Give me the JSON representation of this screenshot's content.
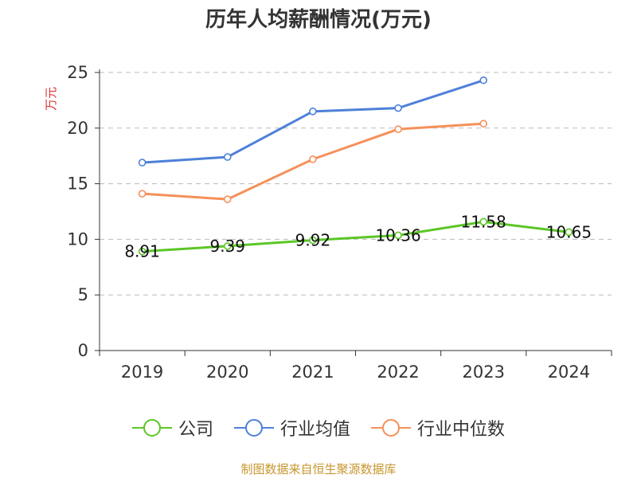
{
  "chart_data": {
    "type": "line",
    "title": "历年人均薪酬情况(万元)",
    "ylabel": "万元",
    "xlabel": "",
    "categories": [
      "2019",
      "2020",
      "2021",
      "2022",
      "2023",
      "2024"
    ],
    "ylim": [
      0,
      25
    ],
    "yticks": [
      0,
      5,
      10,
      15,
      20,
      25
    ],
    "grid": "horizontal-dashed",
    "legend_position": "bottom",
    "series": [
      {
        "name": "公司",
        "color": "#5cc626",
        "values": [
          8.91,
          9.39,
          9.92,
          10.36,
          11.58,
          10.65
        ],
        "labels": [
          "8.91",
          "9.39",
          "9.92",
          "10.36",
          "11.58",
          "10.65"
        ]
      },
      {
        "name": "行业均值",
        "color": "#4e80d9",
        "values": [
          16.9,
          17.4,
          21.5,
          21.8,
          24.3,
          null
        ]
      },
      {
        "name": "行业中位数",
        "color": "#f5905a",
        "values": [
          14.1,
          13.6,
          17.2,
          19.9,
          20.4,
          null
        ]
      }
    ]
  },
  "source_note": "制图数据来自恒生聚源数据库"
}
